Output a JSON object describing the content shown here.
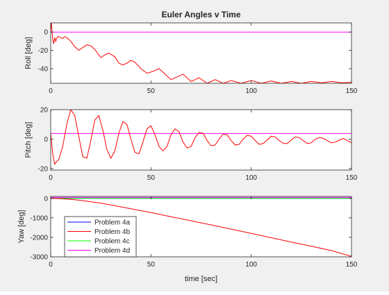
{
  "chart_data": {
    "type": "line",
    "title": "Euler Angles v Time",
    "xlabel": "time [sec]",
    "xlim": [
      0,
      150
    ],
    "xticks": [
      "0",
      "50",
      "100",
      "150"
    ],
    "legend": {
      "placement": "bottom-left of third subplot",
      "entries": [
        {
          "name": "Problem 4a",
          "color": "#0000ff"
        },
        {
          "name": "Problem 4b",
          "color": "#ff0000"
        },
        {
          "name": "Problem 4c",
          "color": "#00ff00"
        },
        {
          "name": "Problem 4d",
          "color": "#ff00ff"
        }
      ]
    },
    "subplots": [
      {
        "ylabel": "Roll [deg]",
        "ylim": [
          -56,
          10
        ],
        "yticks": [
          0,
          -20,
          -40
        ],
        "ytick_labels": [
          "0",
          "-20",
          "-40"
        ],
        "series": [
          {
            "name": "Problem 4d",
            "color": "#ff00ff",
            "x": [
              0,
              150
            ],
            "y": [
              0,
              0
            ]
          },
          {
            "name": "Problem 4b",
            "color": "#ff0000",
            "x": [
              0,
              0.3,
              0.6,
              1,
              1.5,
              2,
              2.5,
              3,
              3.5,
              4,
              5,
              6,
              7,
              8,
              9,
              10,
              12,
              14,
              16,
              18,
              20,
              22,
              25,
              27,
              29,
              32,
              34,
              36,
              38,
              40,
              42,
              45,
              48,
              51,
              54,
              57,
              60,
              63,
              66,
              70,
              74,
              78,
              82,
              86,
              90,
              95,
              100,
              105,
              110,
              115,
              120,
              125,
              130,
              135,
              140,
              145,
              150
            ],
            "y": [
              0,
              10,
              4,
              -8,
              -13,
              -6,
              -10,
              -7,
              -5,
              -5,
              -6,
              -7,
              -5,
              -6,
              -8,
              -10,
              -16,
              -20,
              -17,
              -14,
              -15,
              -19,
              -28,
              -25,
              -23,
              -27,
              -34,
              -36,
              -34,
              -31,
              -33,
              -40,
              -45,
              -43,
              -40,
              -46,
              -52,
              -49,
              -46,
              -54,
              -50,
              -56,
              -52,
              -56,
              -53,
              -56,
              -53,
              -56,
              -53.5,
              -56,
              -54,
              -56,
              -54,
              -55.5,
              -54,
              -55.5,
              -55
            ]
          }
        ]
      },
      {
        "ylabel": "Pitch [deg]",
        "ylim": [
          -21,
          20
        ],
        "yticks": [
          20,
          0,
          -20
        ],
        "ytick_labels": [
          "20",
          "0",
          "-20"
        ],
        "series": [
          {
            "name": "Problem 4d",
            "color": "#ff00ff",
            "x": [
              0,
              150
            ],
            "y": [
              3.8,
              3.8
            ]
          },
          {
            "name": "Problem 4b",
            "color": "#ff0000",
            "x": [
              0,
              1,
              2,
              3,
              4,
              6,
              8,
              10,
              12,
              14,
              16,
              18,
              20,
              22,
              24,
              26,
              28,
              30,
              32,
              34,
              36,
              38,
              40,
              42,
              44,
              46,
              48,
              50,
              52,
              54,
              56,
              58,
              60,
              62,
              64,
              66,
              68,
              70,
              72,
              74,
              76,
              78,
              80,
              82,
              84,
              86,
              88,
              90,
              92,
              94,
              96,
              98,
              100,
              102,
              104,
              106,
              108,
              110,
              112,
              114,
              116,
              118,
              120,
              122,
              124,
              126,
              128,
              130,
              132,
              134,
              136,
              138,
              140,
              142,
              144,
              146,
              148,
              150
            ],
            "y": [
              4,
              -10,
              -17,
              -15,
              -14,
              -5,
              10,
              20,
              16,
              2,
              -12,
              -13,
              -1,
              13,
              16,
              6,
              -7,
              -13,
              -8,
              4,
              12,
              10,
              0,
              -9,
              -10,
              -2,
              7,
              9,
              3,
              -5,
              -8,
              -5,
              3,
              7,
              5,
              -2,
              -6,
              -5,
              1,
              4.5,
              4,
              -1,
              -4.5,
              -4,
              0,
              3.5,
              3,
              -1,
              -4,
              -3.5,
              0,
              2.5,
              2,
              -1,
              -3.5,
              -3,
              -0.5,
              2,
              1.5,
              -1,
              -3,
              -3,
              -0.5,
              1.5,
              1,
              -1,
              -3,
              -2.5,
              0,
              1,
              0.5,
              -1,
              -2.5,
              -2,
              -0.5,
              0.5,
              -1,
              -2.5
            ]
          }
        ]
      },
      {
        "ylabel": "Yaw [deg]",
        "ylim": [
          -3000,
          100
        ],
        "yticks": [
          0,
          -1000,
          -2000,
          -3000
        ],
        "ytick_labels": [
          "0",
          "-1000",
          "-2000",
          "-3000"
        ],
        "series": [
          {
            "name": "Problem 4a",
            "color": "#0000ff",
            "x": [
              0,
              150
            ],
            "y": [
              0,
              0
            ]
          },
          {
            "name": "Problem 4c",
            "color": "#00ff00",
            "x": [
              0,
              150
            ],
            "y": [
              0,
              0
            ]
          },
          {
            "name": "Problem 4d",
            "color": "#ff00ff",
            "x": [
              0,
              150
            ],
            "y": [
              50,
              50
            ]
          },
          {
            "name": "Problem 4b",
            "color": "#ff0000",
            "x": [
              0,
              5,
              10,
              15,
              20,
              25,
              30,
              40,
              50,
              60,
              70,
              80,
              90,
              100,
              110,
              120,
              130,
              140,
              150
            ],
            "y": [
              0,
              -15,
              -50,
              -100,
              -170,
              -250,
              -340,
              -530,
              -730,
              -940,
              -1150,
              -1360,
              -1580,
              -1800,
              -2020,
              -2240,
              -2460,
              -2680,
              -2980
            ]
          }
        ]
      }
    ]
  }
}
